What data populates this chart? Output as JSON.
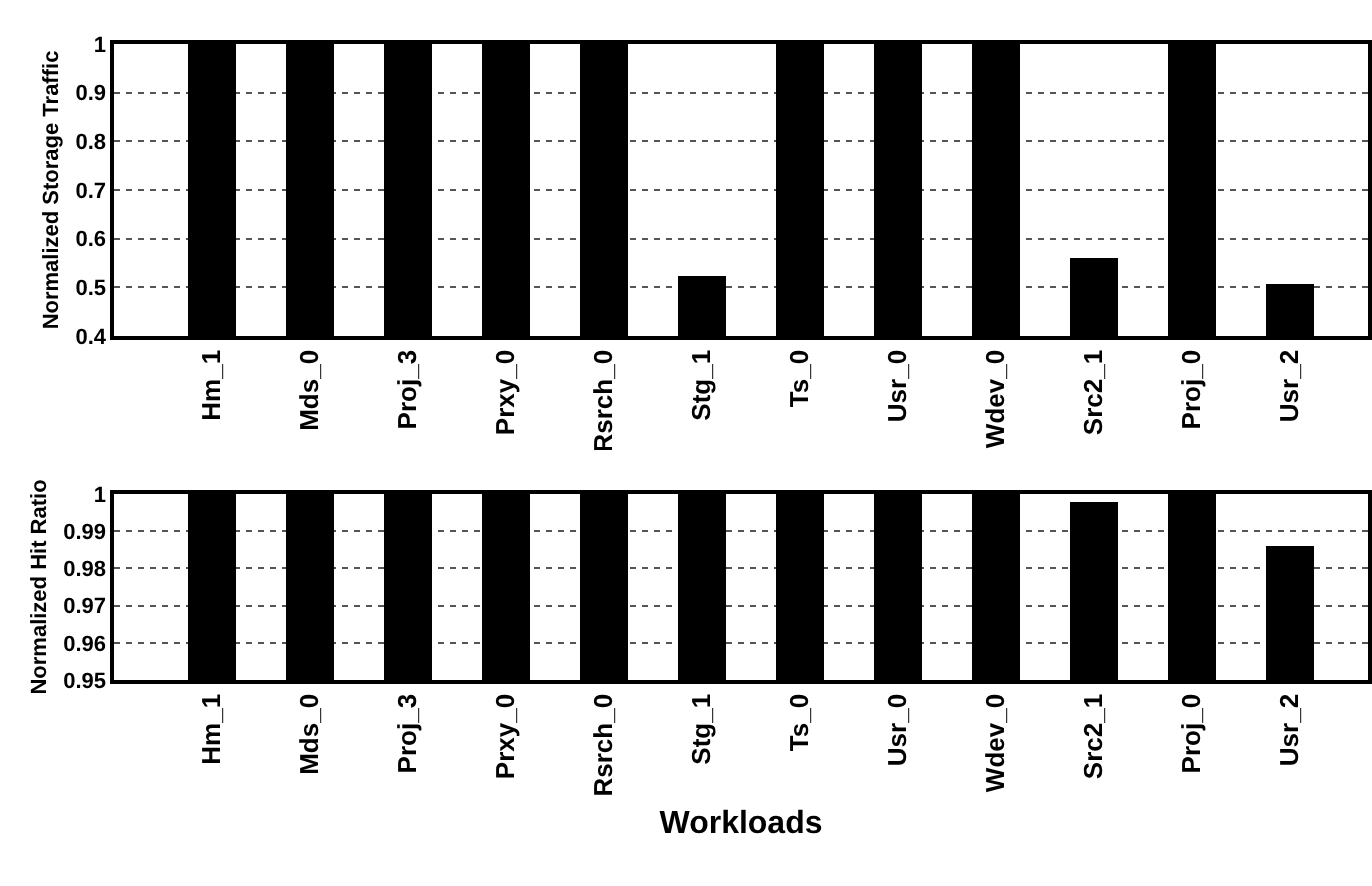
{
  "chart_data": [
    {
      "type": "bar",
      "ylabel": "Normalized Storage Traffic",
      "categories": [
        "Hm_1",
        "Mds_0",
        "Proj_3",
        "Prxy_0",
        "Rsrch_0",
        "Stg_1",
        "Ts_0",
        "Usr_0",
        "Wdev_0",
        "Src2_1",
        "Proj_0",
        "Usr_2"
      ],
      "values": [
        1,
        1,
        1,
        1,
        1,
        0.525,
        1,
        1,
        1,
        0.56,
        1,
        0.505
      ],
      "color": "#000000",
      "ylim": [
        0.4,
        1
      ],
      "yticks": [
        0.4,
        0.5,
        0.6,
        0.7,
        0.8,
        0.9,
        1
      ],
      "grid": "y"
    },
    {
      "type": "bar",
      "xlabel": "Workloads",
      "ylabel": "Normalized Hit Ratio",
      "categories": [
        "Hm_1",
        "Mds_0",
        "Proj_3",
        "Prxy_0",
        "Rsrch_0",
        "Stg_1",
        "Ts_0",
        "Usr_0",
        "Wdev_0",
        "Src2_1",
        "Proj_0",
        "Usr_2"
      ],
      "values": [
        1,
        1,
        1,
        1,
        1,
        1,
        1,
        1,
        1,
        0.998,
        1,
        0.986
      ],
      "color": "#000000",
      "ylim": [
        0.95,
        1
      ],
      "yticks": [
        0.95,
        0.96,
        0.97,
        0.98,
        0.99,
        1
      ],
      "grid": "y"
    }
  ]
}
